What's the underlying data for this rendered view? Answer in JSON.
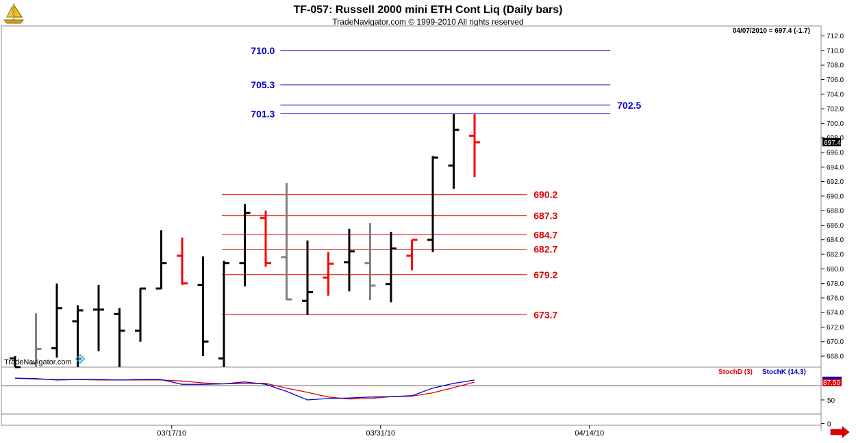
{
  "header": {
    "title": "TF-057:  Russell 2000 mini ETH Cont Liq  (Daily bars)",
    "subtitle": "TradeNavigator.com © 1999-2010 All rights reserved",
    "last_quote": "04/07/2010 = 697.4 (-1.7)",
    "watermark": "TradeNavigator.com",
    "logo": "sailboat-logo-icon"
  },
  "colors": {
    "up_bar": "#000000",
    "down_bar": "#ff0000",
    "doji_bar": "#808080",
    "resistance_line": "#0000cc",
    "support_line": "#e00000",
    "stoch_d": "#e00000",
    "stoch_k": "#0000cc",
    "price_tag_bg": "#000000",
    "nav_arrow": "#e00000"
  },
  "chart_data": [
    {
      "type": "ohlc",
      "name": "price",
      "ylim": [
        666.5,
        713
      ],
      "y_ticks": [
        668,
        670,
        672,
        674,
        676,
        678,
        680,
        682,
        684,
        686,
        688,
        690,
        692,
        694,
        696,
        698,
        700,
        702,
        704,
        706,
        708,
        710,
        712
      ],
      "y_tick_labels": [
        "668.0",
        "670.0",
        "672.0",
        "674.0",
        "676.0",
        "678.0",
        "680.0",
        "682.0",
        "684.0",
        "686.0",
        "688.0",
        "690.0",
        "692.0",
        "694.0",
        "696.0",
        "698.0",
        "700.0",
        "702.0",
        "704.0",
        "706.0",
        "708.0",
        "710.0",
        "712.0"
      ],
      "x_labels": [
        {
          "index": 7.5,
          "label": "03/17/10"
        },
        {
          "index": 17.5,
          "label": "03/31/10"
        },
        {
          "index": 27.5,
          "label": "04/14/10"
        }
      ],
      "bars": [
        {
          "o": 667.7,
          "h": 668.0,
          "l": 666.5,
          "c": 666.5,
          "color": "up"
        },
        {
          "o": 667.0,
          "h": 673.9,
          "l": 666.5,
          "c": 669.0,
          "color": "doji"
        },
        {
          "o": 669.1,
          "h": 678.0,
          "l": 667.8,
          "c": 674.6,
          "color": "up"
        },
        {
          "o": 672.8,
          "h": 675.0,
          "l": 666.5,
          "c": 674.3,
          "color": "up"
        },
        {
          "o": 674.4,
          "h": 677.8,
          "l": 668.7,
          "c": 674.4,
          "color": "up"
        },
        {
          "o": 673.8,
          "h": 674.6,
          "l": 666.5,
          "c": 671.5,
          "color": "up"
        },
        {
          "o": 671.5,
          "h": 677.4,
          "l": 670.0,
          "c": 677.3,
          "color": "up"
        },
        {
          "o": 677.3,
          "h": 685.3,
          "l": 677.2,
          "c": 680.8,
          "color": "up"
        },
        {
          "o": 681.8,
          "h": 684.3,
          "l": 677.8,
          "c": 678.0,
          "color": "down"
        },
        {
          "o": 677.8,
          "h": 681.7,
          "l": 668.0,
          "c": 670.0,
          "color": "up"
        },
        {
          "o": 667.7,
          "h": 681.1,
          "l": 666.5,
          "c": 680.8,
          "color": "up"
        },
        {
          "o": 680.8,
          "h": 688.9,
          "l": 677.6,
          "c": 687.7,
          "color": "up"
        },
        {
          "o": 687.0,
          "h": 688.0,
          "l": 680.3,
          "c": 680.8,
          "color": "down"
        },
        {
          "o": 681.6,
          "h": 691.8,
          "l": 675.7,
          "c": 675.8,
          "color": "doji"
        },
        {
          "o": 675.6,
          "h": 683.9,
          "l": 673.7,
          "c": 676.8,
          "color": "up"
        },
        {
          "o": 678.8,
          "h": 682.3,
          "l": 676.3,
          "c": 680.7,
          "color": "down"
        },
        {
          "o": 680.9,
          "h": 685.5,
          "l": 676.9,
          "c": 682.4,
          "color": "up"
        },
        {
          "o": 680.8,
          "h": 686.3,
          "l": 675.7,
          "c": 677.7,
          "color": "doji"
        },
        {
          "o": 677.9,
          "h": 685.1,
          "l": 675.4,
          "c": 682.8,
          "color": "up"
        },
        {
          "o": 681.8,
          "h": 684.0,
          "l": 679.8,
          "c": 684.0,
          "color": "down"
        },
        {
          "o": 684.0,
          "h": 695.5,
          "l": 682.3,
          "c": 695.3,
          "color": "up"
        },
        {
          "o": 694.2,
          "h": 701.3,
          "l": 691.0,
          "c": 699.1,
          "color": "up"
        },
        {
          "o": 698.3,
          "h": 701.3,
          "l": 692.6,
          "c": 697.4,
          "color": "down"
        }
      ],
      "current_price_label": "697.4",
      "levels": [
        {
          "value": 710.0,
          "label": "710.0",
          "kind": "resistance",
          "from": 12.7,
          "to": 28.5,
          "label_side": "left"
        },
        {
          "value": 705.3,
          "label": "705.3",
          "kind": "resistance",
          "from": 12.7,
          "to": 28.5,
          "label_side": "left"
        },
        {
          "value": 702.5,
          "label": "702.5",
          "kind": "resistance",
          "from": 12.7,
          "to": 28.5,
          "label_side": "right"
        },
        {
          "value": 701.3,
          "label": "701.3",
          "kind": "resistance",
          "from": 12.7,
          "to": 28.5,
          "label_side": "left"
        },
        {
          "value": 690.2,
          "label": "690.2",
          "kind": "support",
          "from": 9.9,
          "to": 24.5,
          "label_side": "right"
        },
        {
          "value": 687.3,
          "label": "687.3",
          "kind": "support",
          "from": 9.9,
          "to": 24.5,
          "label_side": "right"
        },
        {
          "value": 684.7,
          "label": "684.7",
          "kind": "support",
          "from": 9.9,
          "to": 24.5,
          "label_side": "right"
        },
        {
          "value": 682.7,
          "label": "682.7",
          "kind": "support",
          "from": 9.9,
          "to": 24.5,
          "label_side": "right"
        },
        {
          "value": 679.2,
          "label": "679.2",
          "kind": "support",
          "from": 9.9,
          "to": 24.5,
          "label_side": "right"
        },
        {
          "value": 673.7,
          "label": "673.7",
          "kind": "support",
          "from": 9.9,
          "to": 24.5,
          "label_side": "right"
        }
      ]
    },
    {
      "type": "line",
      "name": "stochastic",
      "ylim": [
        -15,
        115
      ],
      "y_ticks": [
        0,
        50
      ],
      "y_tick_labels": [
        "0",
        "50"
      ],
      "reference_lines": [
        20,
        80
      ],
      "current_value_label": "87.50",
      "legend": [
        "StochD (3)",
        "StochK (14,3)"
      ],
      "series": [
        {
          "name": "StochD (3)",
          "color_key": "stoch_d",
          "values": [
            96,
            94,
            93,
            93,
            92,
            92,
            92,
            92,
            90,
            86,
            84,
            85,
            85,
            75,
            66,
            56,
            52,
            53,
            57,
            58,
            65,
            76,
            87.5
          ]
        },
        {
          "name": "StochK (14,3)",
          "color_key": "stoch_k",
          "values": [
            96,
            95,
            92,
            93,
            93,
            92,
            93,
            93,
            83,
            83,
            84,
            88,
            83,
            68,
            50,
            53,
            54,
            56,
            57,
            59,
            75,
            85,
            92
          ]
        }
      ]
    }
  ]
}
